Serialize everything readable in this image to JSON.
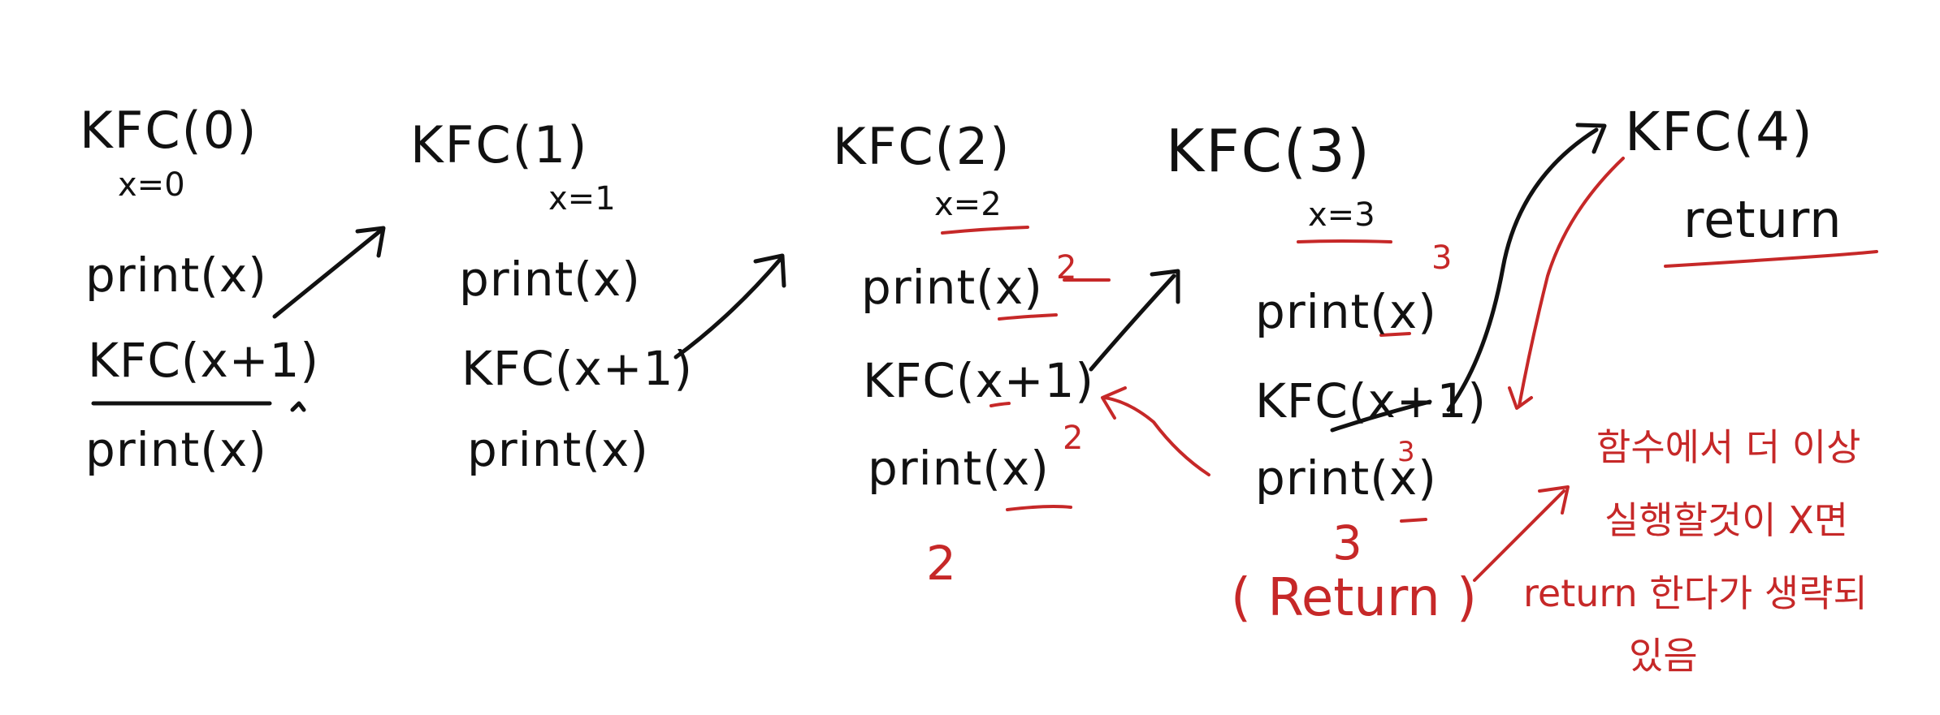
{
  "colors": {
    "ink": "#111111",
    "red": "#c62828",
    "background": "#ffffff"
  },
  "calls": [
    {
      "title": "KFC(0)",
      "var": "x=0",
      "lines": [
        "print(x)",
        "KFC(x+1)",
        "print(x)"
      ]
    },
    {
      "title": "KFC(1)",
      "var": "x=1",
      "lines": [
        "print(x)",
        "KFC(x+1)",
        "print(x)"
      ]
    },
    {
      "title": "KFC(2)",
      "var": "x=2",
      "lines": [
        "print(x)",
        "KFC(x+1)",
        "print(x)"
      ]
    },
    {
      "title": "KFC(3)",
      "var": "x=3",
      "lines": [
        "print(x)",
        "KFC(x+1)",
        "print(x)"
      ]
    },
    {
      "title": "KFC(4)",
      "lines": [
        "return"
      ]
    }
  ],
  "annotations": {
    "kfc2_print1_output": "2",
    "kfc2_print2_output": "2",
    "kfc2_below_output": "2",
    "kfc3_print1_output": "3",
    "kfc3_print2_output": "3",
    "kfc3_below_output": "3",
    "kfc3_return": "( Return )"
  },
  "note": {
    "lines": [
      "함수에서  더 이상",
      "실행할것이  X면",
      "return 한다가 생략되",
      "있음"
    ]
  }
}
